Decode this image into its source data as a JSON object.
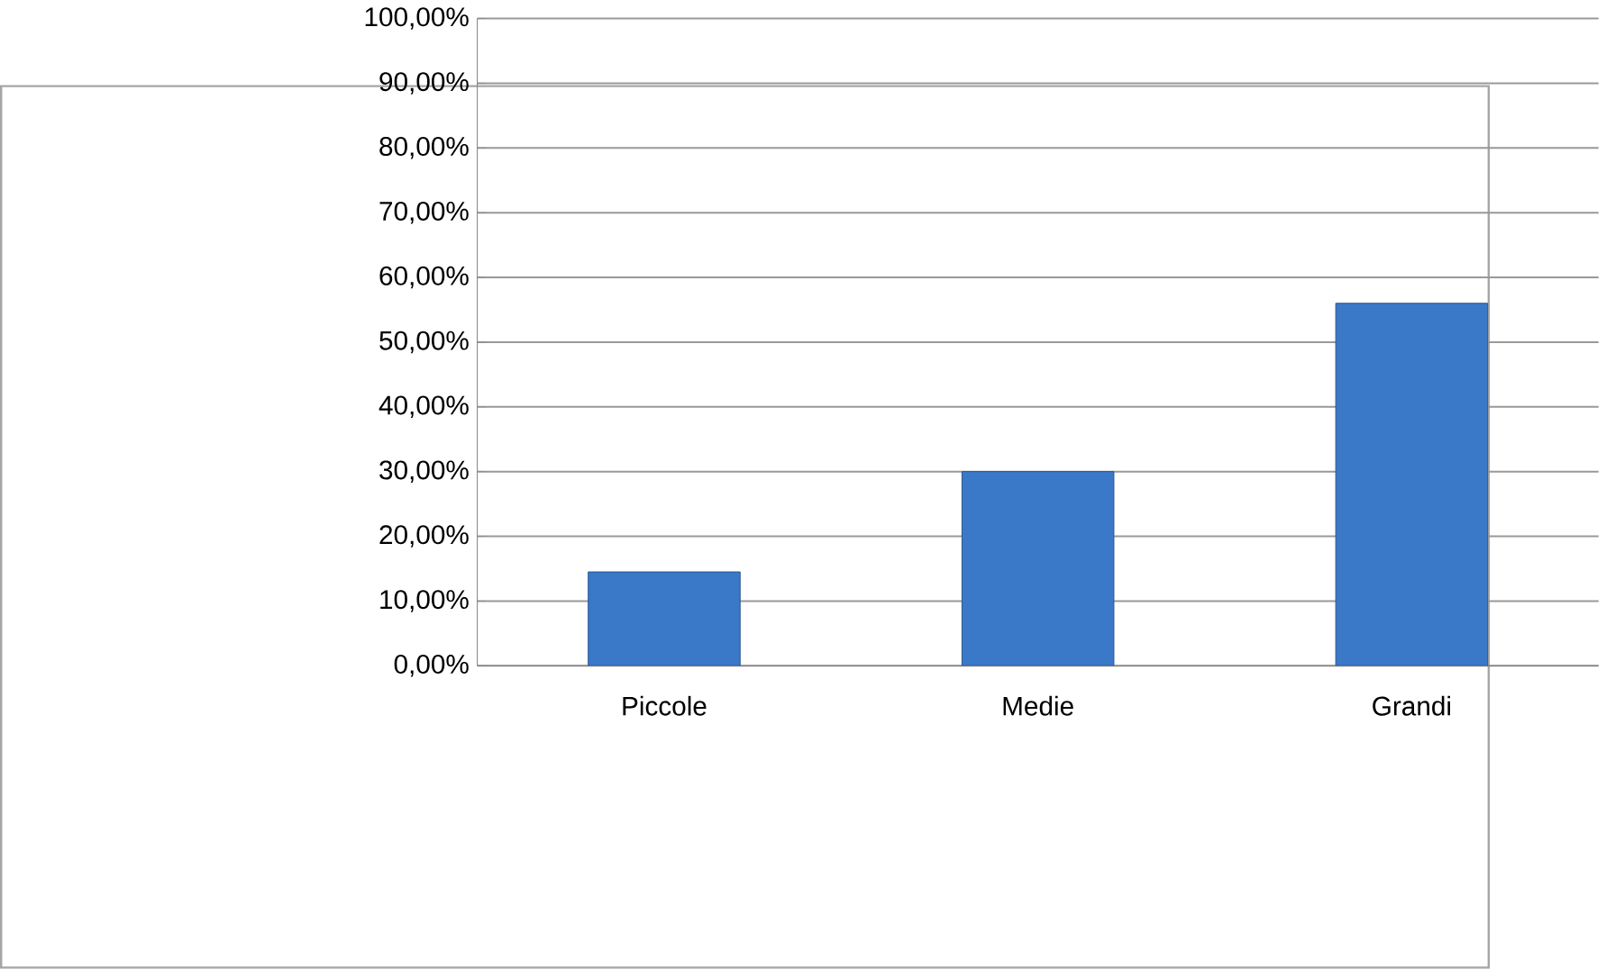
{
  "chart_data": {
    "type": "bar",
    "categories": [
      "Piccole",
      "Medie",
      "Grandi"
    ],
    "values": [
      14.5,
      30,
      56
    ],
    "color": "#3a78c8",
    "ylim": [
      0,
      100
    ],
    "yticks": [
      {
        "value": 0,
        "label": "0,00%"
      },
      {
        "value": 10,
        "label": "10,00%"
      },
      {
        "value": 20,
        "label": "20,00%"
      },
      {
        "value": 30,
        "label": "30,00%"
      },
      {
        "value": 40,
        "label": "40,00%"
      },
      {
        "value": 50,
        "label": "50,00%"
      },
      {
        "value": 60,
        "label": "60,00%"
      },
      {
        "value": 70,
        "label": "70,00%"
      },
      {
        "value": 80,
        "label": "80,00%"
      },
      {
        "value": 90,
        "label": "90,00%"
      },
      {
        "value": 100,
        "label": "100,00%"
      }
    ],
    "grid": "y"
  }
}
